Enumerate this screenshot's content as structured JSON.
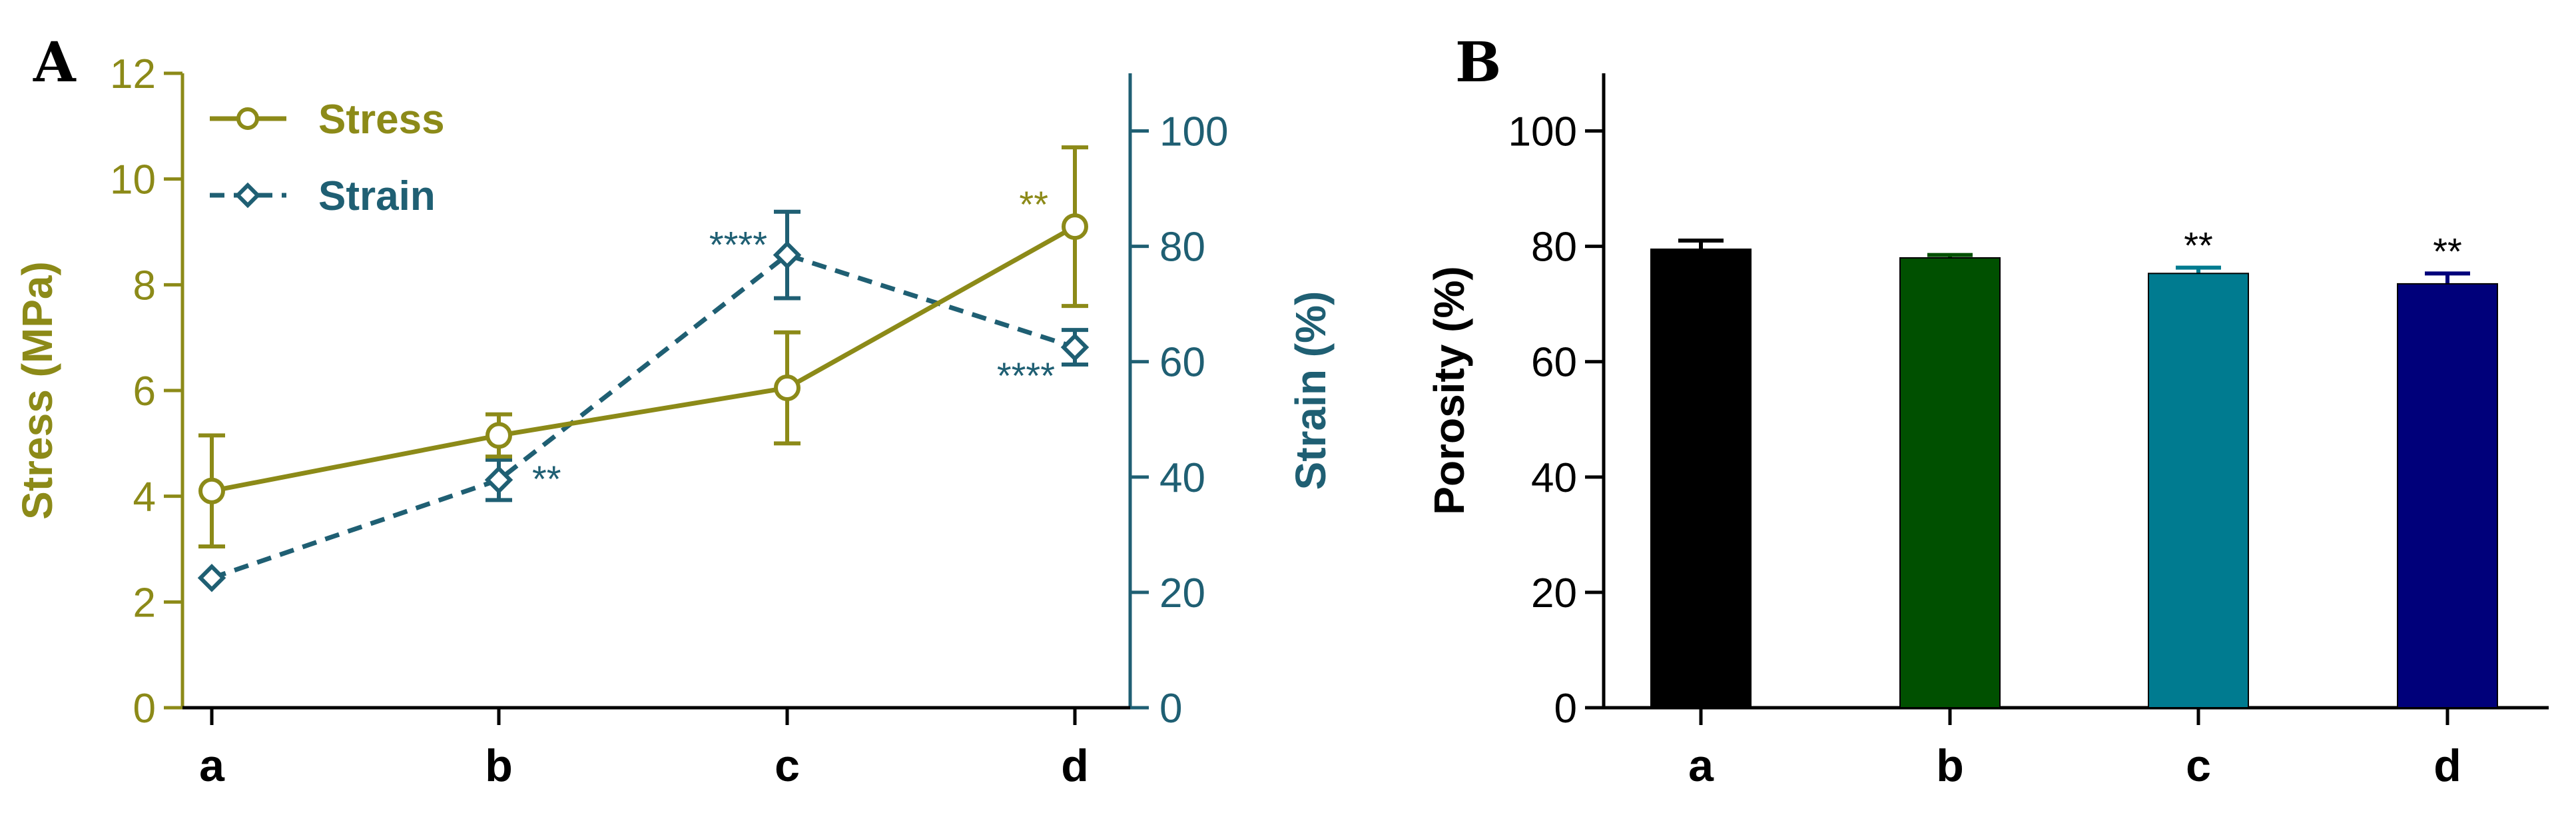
{
  "colors": {
    "stress": "#8c8a18",
    "strain": "#1f5f73",
    "axis_black": "#000000",
    "bar_a": "#000000",
    "bar_b": "#005000",
    "bar_c": "#007b90",
    "bar_d": "#00007a"
  },
  "chart_data": [
    {
      "panel": "A",
      "type": "line",
      "categories": [
        "a",
        "b",
        "c",
        "d"
      ],
      "yaxis_left": {
        "label": "Stress (MPa)",
        "range": [
          0,
          12
        ],
        "ticks": [
          "0",
          "2",
          "4",
          "6",
          "8",
          "10",
          "12"
        ],
        "tick_values": [
          0,
          2,
          4,
          6,
          8,
          10,
          12
        ]
      },
      "yaxis_right": {
        "label": "Strain (%)",
        "range": [
          0,
          110
        ],
        "ticks": [
          "0",
          "20",
          "40",
          "60",
          "80",
          "100"
        ],
        "tick_values": [
          0,
          20,
          40,
          60,
          80,
          100
        ]
      },
      "legend": {
        "placement": "top-left",
        "stress_label": "Stress",
        "strain_label": "Strain"
      },
      "series": [
        {
          "name": "Stress",
          "axis": "left",
          "style": "solid",
          "marker": "circle",
          "values": [
            4.1,
            5.15,
            6.05,
            9.1
          ],
          "errors": [
            1.05,
            0.4,
            1.05,
            1.5
          ],
          "annotations": [
            "",
            "",
            "",
            "**"
          ]
        },
        {
          "name": "Strain",
          "axis": "right",
          "style": "dashed",
          "marker": "diamond",
          "values": [
            22.5,
            39.5,
            78.5,
            62.5
          ],
          "errors": [
            0,
            3.5,
            7.5,
            3
          ],
          "annotations": [
            "",
            "**",
            "****",
            "****"
          ]
        }
      ]
    },
    {
      "panel": "B",
      "type": "bar",
      "categories": [
        "a",
        "b",
        "c",
        "d"
      ],
      "ylabel": "Porosity (%)",
      "ylim": [
        0,
        110
      ],
      "ticks": [
        "0",
        "20",
        "40",
        "60",
        "80",
        "100"
      ],
      "tick_values": [
        0,
        20,
        40,
        60,
        80,
        100
      ],
      "values": [
        79.5,
        78,
        75.3,
        73.5
      ],
      "errors": [
        1.5,
        0.5,
        1.0,
        1.8
      ],
      "annotations": [
        "",
        "",
        "**",
        "**"
      ]
    }
  ]
}
